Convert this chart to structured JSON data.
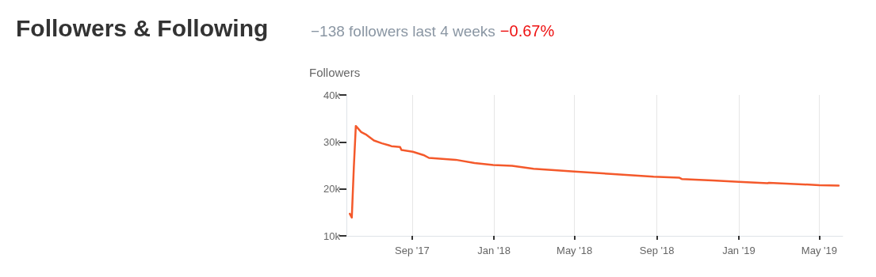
{
  "chart_data": {
    "type": "line",
    "title": "Followers & Following",
    "subtitle": "−138 followers last 4 weeks",
    "annotations": [
      "−0.67%"
    ],
    "ylabel": "Followers",
    "x": [
      "2017-05-31",
      "2017-06-03",
      "2017-06-06",
      "2017-06-09",
      "2017-06-17",
      "2017-06-25",
      "2017-07-06",
      "2017-07-18",
      "2017-07-28",
      "2017-08-01",
      "2017-08-14",
      "2017-08-16",
      "2017-09-02",
      "2017-09-18",
      "2017-09-26",
      "2017-10-16",
      "2017-11-05",
      "2017-12-03",
      "2017-12-31",
      "2018-01-28",
      "2018-03-01",
      "2018-04-01",
      "2018-05-01",
      "2018-06-24",
      "2018-08-27",
      "2018-10-04",
      "2018-10-08",
      "2018-11-23",
      "2019-01-01",
      "2019-02-13",
      "2019-02-15",
      "2019-05-01",
      "2019-05-30"
    ],
    "series": [
      {
        "color": "#f4592b",
        "values": [
          14700,
          13900,
          24500,
          33400,
          32100,
          31500,
          30300,
          29700,
          29300,
          29100,
          28900,
          28300,
          27900,
          27200,
          26600,
          26400,
          26200,
          25500,
          25100,
          24900,
          24300,
          24000,
          23700,
          23200,
          22600,
          22400,
          22100,
          21800,
          21500,
          21200,
          21300,
          20800,
          20700
        ]
      }
    ],
    "xlim": [
      "2017-05-26",
      "2019-06-05"
    ],
    "xticks": [
      {
        "value": "2017-09-01",
        "label": "Sep '17"
      },
      {
        "value": "2018-01-01",
        "label": "Jan '18"
      },
      {
        "value": "2018-05-01",
        "label": "May '18"
      },
      {
        "value": "2018-09-01",
        "label": "Sep '18"
      },
      {
        "value": "2019-01-01",
        "label": "Jan '19"
      },
      {
        "value": "2019-05-01",
        "label": "May '19"
      }
    ],
    "ylim": [
      10000,
      40000
    ],
    "yticks": [
      {
        "value": 10000,
        "label": "10k"
      },
      {
        "value": 20000,
        "label": "20k"
      },
      {
        "value": 30000,
        "label": "30k"
      },
      {
        "value": 40000,
        "label": "40k"
      }
    ],
    "grid": "x",
    "marker": "none",
    "line_style": "solid"
  }
}
